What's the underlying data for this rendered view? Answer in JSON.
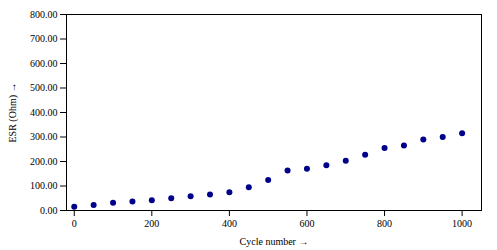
{
  "chart_data": {
    "type": "scatter",
    "x": [
      0,
      50,
      100,
      150,
      200,
      250,
      300,
      350,
      400,
      450,
      500,
      550,
      600,
      650,
      700,
      750,
      800,
      850,
      900,
      950,
      1000
    ],
    "values": [
      15,
      22,
      32,
      37,
      42,
      50,
      58,
      65,
      75,
      95,
      125,
      163,
      170,
      185,
      203,
      228,
      255,
      265,
      290,
      300,
      315
    ],
    "color": "#00008B",
    "xlabel": "Cycle number",
    "ylabel": "ESR (Ohm)",
    "xlim": [
      -20,
      1050
    ],
    "ylim": [
      0,
      800
    ],
    "xticks": [
      0,
      200,
      400,
      600,
      800,
      1000
    ],
    "yticks": [
      {
        "value": 0,
        "label": "0.00"
      },
      {
        "value": 100,
        "label": "100.00"
      },
      {
        "value": 200,
        "label": "200.00"
      },
      {
        "value": 300,
        "label": "300.00"
      },
      {
        "value": 400,
        "label": "400.00"
      },
      {
        "value": 500,
        "label": "500.00"
      },
      {
        "value": 600,
        "label": "600.00"
      },
      {
        "value": 700,
        "label": "700.00"
      },
      {
        "value": 800,
        "label": "800.00"
      }
    ],
    "grid": false
  }
}
